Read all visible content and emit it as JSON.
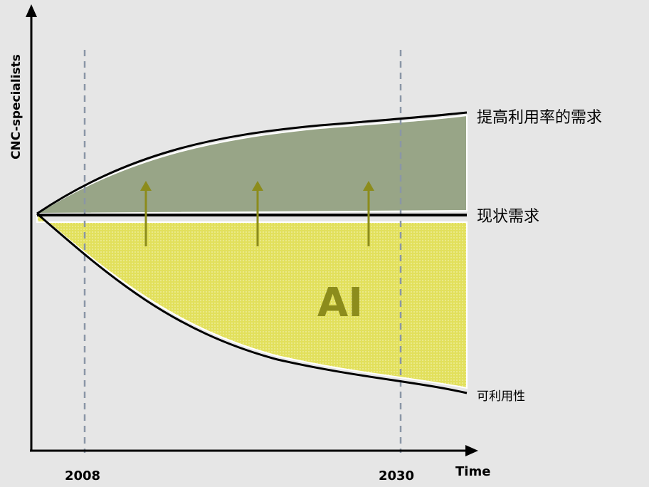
{
  "axes": {
    "y_label": "CNC-specialists",
    "x_label": "Time"
  },
  "markers": [
    {
      "label": "2008"
    },
    {
      "label": "2030"
    }
  ],
  "curves": {
    "increased_demand": "提高利用率的需求",
    "current_demand": "现状需求",
    "availability": "可利用性"
  },
  "gap_label": "AI",
  "colors": {
    "background": "#e6e6e6",
    "upper_area": "#98a587",
    "lower_area": "#e2e05c",
    "dot_pattern": "#f1f0a8",
    "arrow": "#8c8c1c",
    "dashed_line": "#8a96a6",
    "curve": "#000000",
    "ai_text": "#8c8c1c"
  }
}
